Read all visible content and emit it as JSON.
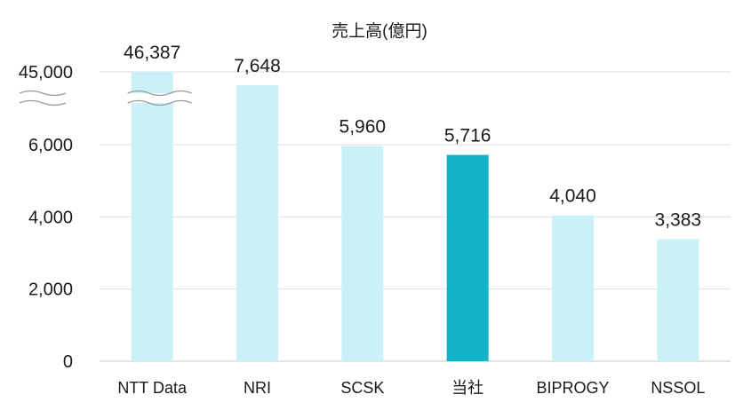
{
  "chart_data": {
    "type": "bar",
    "title": "売上高(億円)",
    "xlabel": "",
    "ylabel": "",
    "ylim": [
      0,
      8000
    ],
    "axis_break": {
      "lower": 6000,
      "upper": 45000
    },
    "y_ticks": [
      {
        "value": 0,
        "label": "0"
      },
      {
        "value": 2000,
        "label": "2,000"
      },
      {
        "value": 4000,
        "label": "4,000"
      },
      {
        "value": 6000,
        "label": "6,000"
      },
      {
        "value": 45000,
        "label": "45,000"
      }
    ],
    "categories": [
      "NTT Data",
      "NRI",
      "SCSK",
      "当社",
      "BIPROGY",
      "NSSOL"
    ],
    "values": [
      46387,
      7648,
      5960,
      5716,
      4040,
      3383
    ],
    "value_labels": [
      "46,387",
      "7,648",
      "5,960",
      "5,716",
      "4,040",
      "3,383"
    ],
    "highlight_category": "当社",
    "colors": {
      "bar": "#c9f1f7",
      "highlight": "#12b3c8",
      "grid": "#dedede",
      "text": "#1a1a1a"
    },
    "grid": true,
    "legend": "none"
  }
}
